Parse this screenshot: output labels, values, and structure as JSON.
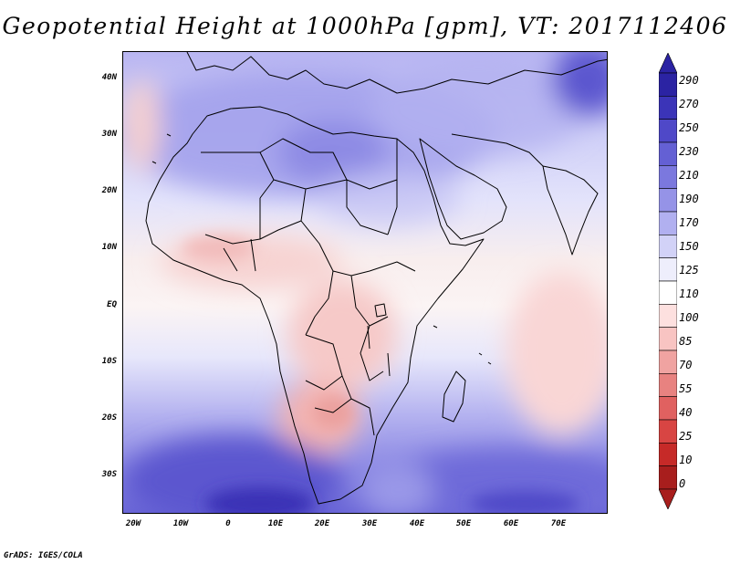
{
  "title": "Geopotential Height at 1000hPa [gpm], VT: 2017112406",
  "credit": "GrADS: IGES/COLA",
  "map": {
    "lat_labels": [
      "40N",
      "30N",
      "20N",
      "10N",
      "EQ",
      "10S",
      "20S",
      "30S"
    ],
    "lon_labels": [
      "20W",
      "10W",
      "0",
      "10E",
      "20E",
      "30E",
      "40E",
      "50E",
      "60E",
      "70E"
    ]
  },
  "colorbar": {
    "labels": [
      "290",
      "270",
      "250",
      "230",
      "210",
      "190",
      "170",
      "150",
      "125",
      "110",
      "100",
      "85",
      "70",
      "55",
      "40",
      "25",
      "10",
      "0"
    ],
    "colors": [
      "#2b23a3",
      "#3b34b8",
      "#4f48c8",
      "#6460d4",
      "#7b78de",
      "#9593e7",
      "#b1b0f0",
      "#d2d2f7",
      "#eeeefc",
      "#ffffff",
      "#fde0df",
      "#f8c4c2",
      "#f0a3a1",
      "#e88280",
      "#e06160",
      "#d84543",
      "#c62a28",
      "#a81e1d"
    ]
  }
}
